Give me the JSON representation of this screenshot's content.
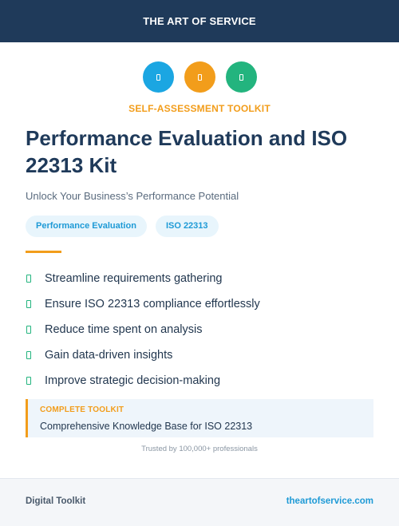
{
  "header": {
    "brand": "THE ART OF SERVICE"
  },
  "icons": [
    {
      "name": "blue-circle-icon",
      "color": "#1ba6e2"
    },
    {
      "name": "orange-circle-icon",
      "color": "#f29d1b"
    },
    {
      "name": "green-circle-icon",
      "color": "#23b47e"
    }
  ],
  "eyebrow": "SELF-ASSESSMENT TOOLKIT",
  "title": "Performance Evaluation and ISO 22313 Kit",
  "subtitle": "Unlock Your Business’s Performance Potential",
  "tags": [
    "Performance Evaluation",
    "ISO 22313"
  ],
  "benefits": [
    "Streamline requirements gathering",
    "Ensure ISO 22313 compliance effortlessly",
    "Reduce time spent on analysis",
    "Gain data-driven insights",
    "Improve strategic decision-making"
  ],
  "callout": {
    "label": "COMPLETE TOOLKIT",
    "value": "Comprehensive Knowledge Base for ISO 22313"
  },
  "trust": "Trusted by 100,000+ professionals",
  "footer": {
    "left": "Digital Toolkit",
    "right": "theartofservice.com"
  },
  "colors": {
    "navy": "#1f3a5a",
    "accent": "#f29d1b",
    "blue": "#1e9ad6",
    "green": "#23b47e"
  }
}
